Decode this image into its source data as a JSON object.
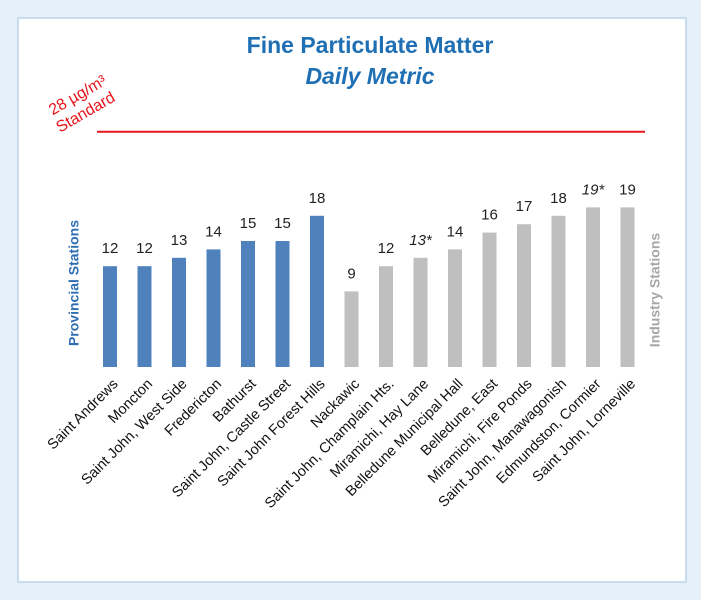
{
  "chart_data": {
    "type": "bar",
    "title": "Fine Particulate Matter",
    "subtitle": "Daily Metric",
    "categories": [
      "Saint Andrews",
      "Moncton",
      "Saint John, West Side",
      "Fredericton",
      "Bathurst",
      "Saint John, Castle Street",
      "Saint John Forest Hills",
      "Nackawic",
      "Saint John, Champlain Hts.",
      "Miramichi, Hay Lane",
      "Belledune Municipal Hall",
      "Belledune, East",
      "Miramichi, Fire Ponds",
      "Saint John, Manawagonish",
      "Edmundston, Cormier",
      "Saint John, Lorneville"
    ],
    "series": [
      {
        "name": "Provincial Stations",
        "color": "#4f81bd",
        "values": [
          12,
          12,
          13,
          14,
          15,
          15,
          18,
          null,
          null,
          null,
          null,
          null,
          null,
          null,
          null,
          null
        ]
      },
      {
        "name": "Industry Stations",
        "color": "#bfbfbf",
        "values": [
          null,
          null,
          null,
          null,
          null,
          null,
          null,
          9,
          12,
          13,
          14,
          16,
          17,
          18,
          19,
          19
        ],
        "value_labels": [
          null,
          null,
          null,
          null,
          null,
          null,
          null,
          null,
          null,
          "13*",
          null,
          null,
          null,
          null,
          "19*",
          null
        ]
      }
    ],
    "standard": {
      "value": 28,
      "label": [
        "28 µg/m³",
        "Standard"
      ],
      "color": "#e8141b"
    },
    "ylim": [
      0,
      40
    ]
  }
}
